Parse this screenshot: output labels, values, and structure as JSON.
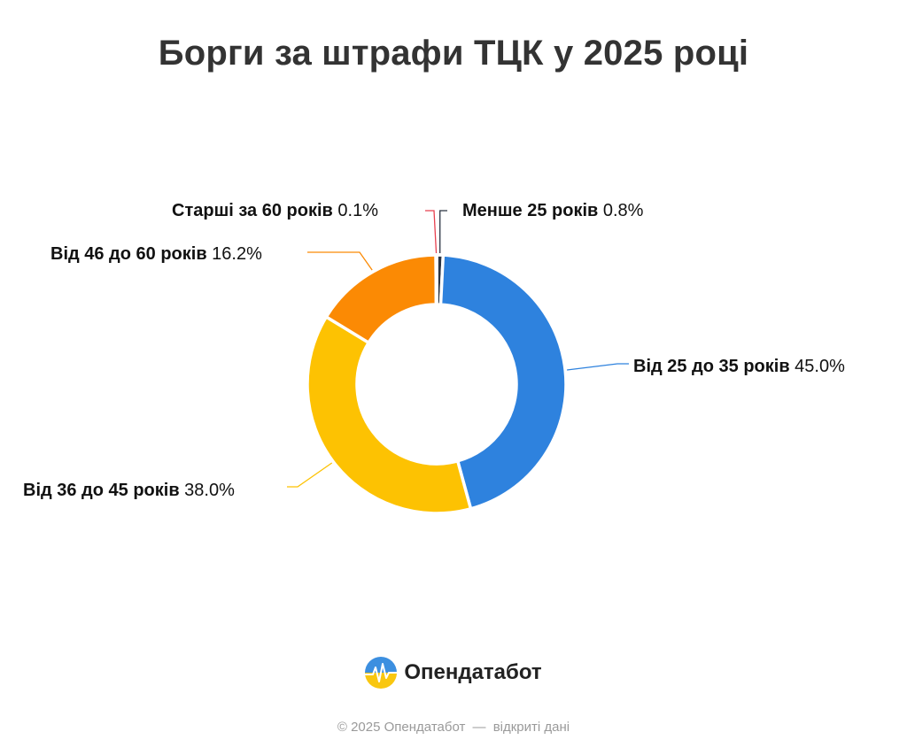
{
  "title": "Борги за штрафи ТЦК у 2025 році",
  "chart_data": {
    "type": "pie",
    "donut": true,
    "title": "Борги за штрафи ТЦК у 2025 році",
    "slices": [
      {
        "label": "Менше 25 років",
        "value": 0.8,
        "value_text": "0.8%",
        "color": "#2b3442"
      },
      {
        "label": "Від 25 до 35 років",
        "value": 45.0,
        "value_text": "45.0%",
        "color": "#2e82de"
      },
      {
        "label": "Від 36 до 45 років",
        "value": 38.0,
        "value_text": "38.0%",
        "color": "#fdc202"
      },
      {
        "label": "Від 46 до 60 років",
        "value": 16.2,
        "value_text": "16.2%",
        "color": "#fb8a04"
      },
      {
        "label": "Старші за 60 років",
        "value": 0.1,
        "value_text": "0.1%",
        "color": "#e8404f"
      }
    ]
  },
  "logo": {
    "brand": "Опендатабот",
    "icon": "opendatabot-logo-icon"
  },
  "footer": {
    "copyright": "© 2025 Опендатабот",
    "separator": "—",
    "note": "відкриті дані"
  }
}
